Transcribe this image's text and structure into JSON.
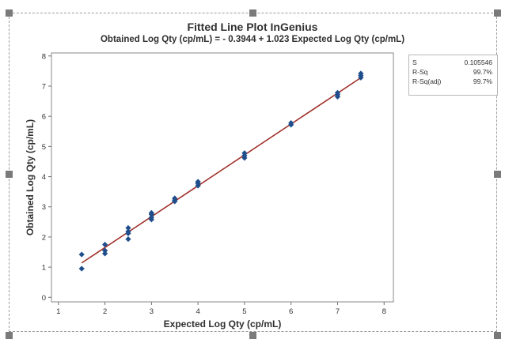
{
  "chart_data": {
    "type": "scatter",
    "title": "Fitted Line Plot InGenius",
    "subtitle": "Obtained Log Qty (cp/mL) = - 0.3944 + 1.023 Expected Log Qty (cp/mL)",
    "xlabel": "Expected Log Qty (cp/mL)",
    "ylabel": "Obtained Log Qty (cp/mL)",
    "xlim": [
      0.85,
      8.2
    ],
    "ylim": [
      -0.15,
      8.1
    ],
    "xticks": [
      1,
      2,
      3,
      4,
      5,
      6,
      7,
      8
    ],
    "yticks": [
      0,
      1,
      2,
      3,
      4,
      5,
      6,
      7,
      8
    ],
    "grid": false,
    "fit_line": {
      "intercept": -0.3944,
      "slope": 1.023,
      "x_range": [
        1.5,
        7.5
      ],
      "color": "#a0302a"
    },
    "marker_color": "#1f4e8c",
    "points": [
      {
        "x": 1.5,
        "y": 0.95
      },
      {
        "x": 1.5,
        "y": 1.42
      },
      {
        "x": 2.0,
        "y": 1.45
      },
      {
        "x": 2.0,
        "y": 1.55
      },
      {
        "x": 2.0,
        "y": 1.75
      },
      {
        "x": 2.5,
        "y": 1.93
      },
      {
        "x": 2.5,
        "y": 2.12
      },
      {
        "x": 2.5,
        "y": 2.18
      },
      {
        "x": 2.5,
        "y": 2.3
      },
      {
        "x": 3.0,
        "y": 2.58
      },
      {
        "x": 3.0,
        "y": 2.65
      },
      {
        "x": 3.0,
        "y": 2.75
      },
      {
        "x": 3.0,
        "y": 2.8
      },
      {
        "x": 3.5,
        "y": 3.18
      },
      {
        "x": 3.5,
        "y": 3.22
      },
      {
        "x": 3.5,
        "y": 3.28
      },
      {
        "x": 4.0,
        "y": 3.7
      },
      {
        "x": 4.0,
        "y": 3.77
      },
      {
        "x": 4.0,
        "y": 3.83
      },
      {
        "x": 5.0,
        "y": 4.62
      },
      {
        "x": 5.0,
        "y": 4.7
      },
      {
        "x": 5.0,
        "y": 4.78
      },
      {
        "x": 6.0,
        "y": 5.72
      },
      {
        "x": 6.0,
        "y": 5.78
      },
      {
        "x": 7.0,
        "y": 6.65
      },
      {
        "x": 7.0,
        "y": 6.72
      },
      {
        "x": 7.0,
        "y": 6.78
      },
      {
        "x": 7.5,
        "y": 7.28
      },
      {
        "x": 7.5,
        "y": 7.35
      },
      {
        "x": 7.5,
        "y": 7.42
      }
    ]
  },
  "stats": [
    {
      "label": "S",
      "value": "0.105546"
    },
    {
      "label": "R-Sq",
      "value": "99.7%"
    },
    {
      "label": "R-Sq(adj)",
      "value": "99.7%"
    }
  ]
}
